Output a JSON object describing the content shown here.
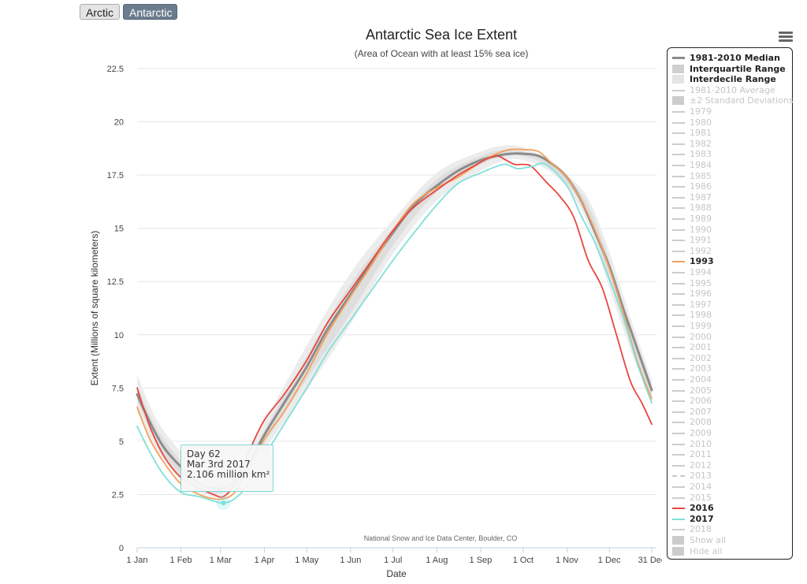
{
  "toggles": {
    "arctic": "Arctic",
    "antarctic": "Antarctic"
  },
  "tooltip": {
    "line1": "Day 62",
    "line2": "Mar 3rd 2017",
    "line3": "2.106 million km²"
  },
  "chart_data": {
    "type": "line",
    "title": "Antarctic Sea Ice Extent",
    "subtitle": "(Area of Ocean with at least 15% sea ice)",
    "xlabel": "Date",
    "ylabel": "Extent (Millions of square kilometers)",
    "credit": "National Snow and Ice Data Center, Boulder, CO",
    "ylim": [
      0,
      22.5
    ],
    "yticks": [
      0,
      2.5,
      5,
      7.5,
      10,
      12.5,
      15,
      17.5,
      20,
      22.5
    ],
    "ytick_labels": [
      "0",
      "2.5",
      "5",
      "7.5",
      "10",
      "12.5",
      "15",
      "17.5",
      "20",
      "22.5"
    ],
    "xlim": [
      1,
      365
    ],
    "xticks": [
      1,
      32,
      60,
      91,
      121,
      152,
      182,
      213,
      244,
      274,
      305,
      335,
      365
    ],
    "xtick_labels": [
      "1 Jan",
      "1 Feb",
      "1 Mar",
      "1 Apr",
      "1 May",
      "1 Jun",
      "1 Jul",
      "1 Aug",
      "1 Sep",
      "1 Oct",
      "1 Nov",
      "1 Dec",
      "31 Dec"
    ],
    "grid": true,
    "legend_position": "right",
    "bands": [
      {
        "name": "Interdecile Range",
        "color": "#ececec",
        "x": [
          1,
          15,
          32,
          50,
          62,
          75,
          91,
          121,
          152,
          182,
          213,
          244,
          262,
          274,
          290,
          305,
          320,
          335,
          350,
          365
        ],
        "lower": [
          6.4,
          4.6,
          3.2,
          2.5,
          2.4,
          3.1,
          4.6,
          7.4,
          10.5,
          13.8,
          16.3,
          17.7,
          18.2,
          18.2,
          17.8,
          16.9,
          15.2,
          12.2,
          9.3,
          6.8
        ],
        "upper": [
          8.1,
          6.0,
          4.5,
          3.3,
          3.1,
          3.9,
          5.9,
          9.5,
          12.9,
          15.4,
          17.6,
          18.6,
          18.9,
          18.8,
          18.3,
          17.5,
          16.4,
          13.9,
          10.8,
          7.9
        ]
      },
      {
        "name": "Interquartile Range",
        "color": "#dedede",
        "x": [
          1,
          15,
          32,
          50,
          62,
          75,
          91,
          121,
          152,
          182,
          213,
          244,
          262,
          274,
          290,
          305,
          320,
          335,
          350,
          365
        ],
        "lower": [
          6.9,
          4.9,
          3.4,
          2.7,
          2.6,
          3.3,
          4.9,
          7.9,
          11.0,
          14.2,
          16.7,
          18.0,
          18.4,
          18.4,
          18.0,
          17.1,
          15.6,
          12.6,
          9.6,
          7.1
        ],
        "upper": [
          7.6,
          5.6,
          4.1,
          3.1,
          2.9,
          3.7,
          5.5,
          9.0,
          12.4,
          15.0,
          17.3,
          18.4,
          18.7,
          18.6,
          18.2,
          17.4,
          16.1,
          13.5,
          10.4,
          7.6
        ]
      }
    ],
    "series": [
      {
        "name": "1981-2010 Median",
        "color": "#8c8c8c",
        "width": 3,
        "x": [
          1,
          10,
          20,
          32,
          45,
          55,
          62,
          70,
          80,
          91,
          105,
          121,
          136,
          152,
          167,
          182,
          197,
          213,
          228,
          244,
          255,
          265,
          274,
          285,
          295,
          305,
          315,
          325,
          335,
          345,
          355,
          365
        ],
        "y": [
          7.2,
          5.9,
          4.7,
          3.8,
          3.0,
          2.8,
          2.8,
          3.1,
          3.9,
          5.3,
          6.8,
          8.5,
          10.3,
          11.9,
          13.4,
          14.8,
          16.1,
          17.0,
          17.7,
          18.2,
          18.4,
          18.5,
          18.5,
          18.4,
          18.0,
          17.4,
          16.3,
          14.8,
          13.2,
          11.2,
          9.3,
          7.4
        ]
      },
      {
        "name": "1993",
        "color": "#f5a05a",
        "width": 1.8,
        "x": [
          1,
          10,
          20,
          32,
          45,
          55,
          62,
          70,
          80,
          91,
          105,
          121,
          136,
          152,
          167,
          182,
          197,
          213,
          228,
          244,
          255,
          265,
          274,
          285,
          295,
          305,
          315,
          325,
          335,
          345,
          355,
          365
        ],
        "y": [
          6.6,
          5.1,
          4.0,
          3.0,
          2.5,
          2.3,
          2.3,
          2.6,
          3.7,
          5.1,
          6.4,
          8.2,
          10.1,
          11.8,
          13.3,
          14.9,
          16.2,
          16.9,
          17.4,
          18.1,
          18.5,
          18.7,
          18.7,
          18.6,
          18.0,
          17.4,
          16.3,
          14.9,
          13.1,
          11.0,
          8.7,
          7.0
        ]
      },
      {
        "name": "2016",
        "color": "#e8463f",
        "width": 1.8,
        "x": [
          1,
          10,
          20,
          32,
          45,
          55,
          62,
          70,
          80,
          91,
          105,
          121,
          136,
          152,
          167,
          182,
          197,
          213,
          228,
          244,
          250,
          256,
          262,
          268,
          274,
          280,
          290,
          300,
          310,
          320,
          330,
          340,
          350,
          358,
          365
        ],
        "y": [
          7.5,
          5.7,
          4.3,
          3.3,
          2.8,
          2.5,
          2.4,
          3.0,
          4.5,
          6.0,
          7.2,
          8.8,
          10.6,
          12.1,
          13.5,
          14.9,
          16.0,
          16.8,
          17.5,
          18.1,
          18.3,
          18.4,
          18.2,
          18.0,
          18.0,
          17.9,
          17.2,
          16.5,
          15.5,
          13.5,
          12.2,
          10.0,
          7.8,
          6.8,
          5.8
        ]
      },
      {
        "name": "2017",
        "color": "#7fe0d8",
        "width": 1.8,
        "x": [
          1,
          10,
          20,
          32,
          45,
          55,
          62,
          70,
          80,
          91,
          105,
          121,
          136,
          152,
          167,
          182,
          197,
          213,
          228,
          244,
          255,
          262,
          270,
          280,
          290,
          305,
          315,
          325,
          335,
          345,
          355,
          365
        ],
        "y": [
          5.7,
          4.5,
          3.4,
          2.6,
          2.4,
          2.2,
          2.1,
          2.3,
          3.0,
          4.3,
          5.8,
          7.5,
          9.2,
          10.7,
          12.1,
          13.5,
          14.8,
          16.1,
          17.1,
          17.6,
          17.9,
          18.0,
          17.8,
          17.9,
          18.0,
          17.0,
          15.6,
          14.3,
          12.6,
          10.8,
          8.6,
          6.8
        ]
      }
    ],
    "highlight_point": {
      "x": 62,
      "y": 2.106,
      "series": "2017"
    }
  },
  "legend": {
    "items": [
      {
        "label": "1981-2010 Median",
        "state": "on",
        "symbol": "line",
        "color": "#8c8c8c"
      },
      {
        "label": "Interquartile Range",
        "state": "on",
        "symbol": "box",
        "color": "#cfcfcf"
      },
      {
        "label": "Interdecile Range",
        "state": "on",
        "symbol": "box",
        "color": "#e4e4e4"
      },
      {
        "label": "1981-2010 Average",
        "state": "off",
        "symbol": "line",
        "color": "#cccccc"
      },
      {
        "label": "±2 Standard Deviations",
        "state": "off",
        "symbol": "box",
        "color": "#cccccc"
      },
      {
        "label": "1979",
        "state": "off",
        "symbol": "line",
        "color": "#cccccc"
      },
      {
        "label": "1980",
        "state": "off",
        "symbol": "line",
        "color": "#cccccc"
      },
      {
        "label": "1981",
        "state": "off",
        "symbol": "line",
        "color": "#cccccc"
      },
      {
        "label": "1982",
        "state": "off",
        "symbol": "line",
        "color": "#cccccc"
      },
      {
        "label": "1983",
        "state": "off",
        "symbol": "line",
        "color": "#cccccc"
      },
      {
        "label": "1984",
        "state": "off",
        "symbol": "line",
        "color": "#cccccc"
      },
      {
        "label": "1985",
        "state": "off",
        "symbol": "line",
        "color": "#cccccc"
      },
      {
        "label": "1986",
        "state": "off",
        "symbol": "line",
        "color": "#cccccc"
      },
      {
        "label": "1987",
        "state": "off",
        "symbol": "line",
        "color": "#cccccc"
      },
      {
        "label": "1988",
        "state": "off",
        "symbol": "line",
        "color": "#cccccc"
      },
      {
        "label": "1989",
        "state": "off",
        "symbol": "line",
        "color": "#cccccc"
      },
      {
        "label": "1990",
        "state": "off",
        "symbol": "line",
        "color": "#cccccc"
      },
      {
        "label": "1991",
        "state": "off",
        "symbol": "line",
        "color": "#cccccc"
      },
      {
        "label": "1992",
        "state": "off",
        "symbol": "line",
        "color": "#cccccc"
      },
      {
        "label": "1993",
        "state": "on",
        "symbol": "line",
        "color": "#f5a05a"
      },
      {
        "label": "1994",
        "state": "off",
        "symbol": "line",
        "color": "#cccccc"
      },
      {
        "label": "1995",
        "state": "off",
        "symbol": "line",
        "color": "#cccccc"
      },
      {
        "label": "1996",
        "state": "off",
        "symbol": "line",
        "color": "#cccccc"
      },
      {
        "label": "1997",
        "state": "off",
        "symbol": "line",
        "color": "#cccccc"
      },
      {
        "label": "1998",
        "state": "off",
        "symbol": "line",
        "color": "#cccccc"
      },
      {
        "label": "1999",
        "state": "off",
        "symbol": "line",
        "color": "#cccccc"
      },
      {
        "label": "2000",
        "state": "off",
        "symbol": "line",
        "color": "#cccccc"
      },
      {
        "label": "2001",
        "state": "off",
        "symbol": "line",
        "color": "#cccccc"
      },
      {
        "label": "2002",
        "state": "off",
        "symbol": "line",
        "color": "#cccccc"
      },
      {
        "label": "2003",
        "state": "off",
        "symbol": "line",
        "color": "#cccccc"
      },
      {
        "label": "2004",
        "state": "off",
        "symbol": "line",
        "color": "#cccccc"
      },
      {
        "label": "2005",
        "state": "off",
        "symbol": "line",
        "color": "#cccccc"
      },
      {
        "label": "2006",
        "state": "off",
        "symbol": "line",
        "color": "#cccccc"
      },
      {
        "label": "2007",
        "state": "off",
        "symbol": "line",
        "color": "#cccccc"
      },
      {
        "label": "2008",
        "state": "off",
        "symbol": "line",
        "color": "#cccccc"
      },
      {
        "label": "2009",
        "state": "off",
        "symbol": "line",
        "color": "#cccccc"
      },
      {
        "label": "2010",
        "state": "off",
        "symbol": "line",
        "color": "#cccccc"
      },
      {
        "label": "2011",
        "state": "off",
        "symbol": "line",
        "color": "#cccccc"
      },
      {
        "label": "2012",
        "state": "off",
        "symbol": "line",
        "color": "#cccccc"
      },
      {
        "label": "2013",
        "state": "off",
        "symbol": "dashline",
        "color": "#cccccc"
      },
      {
        "label": "2014",
        "state": "off",
        "symbol": "line",
        "color": "#cccccc"
      },
      {
        "label": "2015",
        "state": "off",
        "symbol": "line",
        "color": "#cccccc"
      },
      {
        "label": "2016",
        "state": "on",
        "symbol": "line",
        "color": "#e8463f"
      },
      {
        "label": "2017",
        "state": "on",
        "symbol": "line",
        "color": "#7fe0d8"
      },
      {
        "label": "2018",
        "state": "off",
        "symbol": "line",
        "color": "#cccccc"
      },
      {
        "label": "Show all",
        "state": "off",
        "symbol": "box",
        "color": "#cccccc"
      },
      {
        "label": "Hide all",
        "state": "off",
        "symbol": "box",
        "color": "#cccccc"
      }
    ]
  }
}
